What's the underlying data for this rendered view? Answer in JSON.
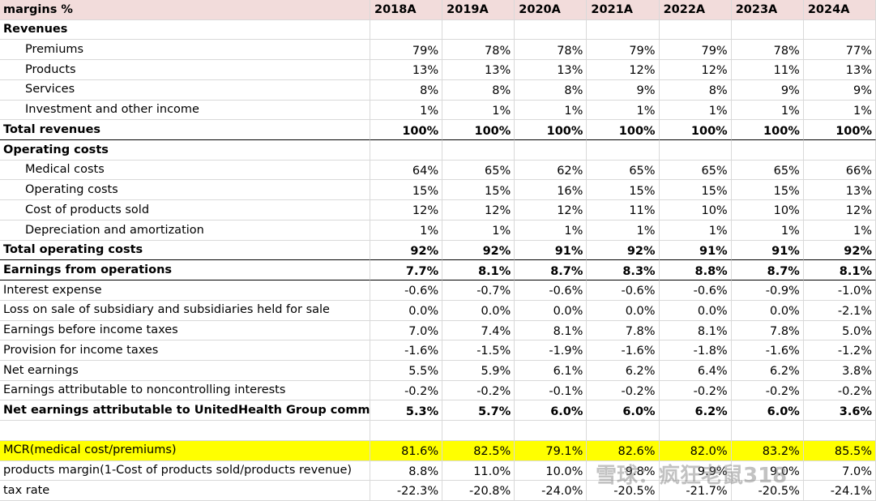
{
  "header": {
    "label": "margins %",
    "years": [
      "2018A",
      "2019A",
      "2020A",
      "2021A",
      "2022A",
      "2023A",
      "2024A"
    ]
  },
  "rows": [
    {
      "label": "Revenues",
      "bold": true
    },
    {
      "label": "Premiums",
      "indent": true,
      "values": [
        "79%",
        "78%",
        "78%",
        "79%",
        "79%",
        "78%",
        "77%"
      ]
    },
    {
      "label": "Products",
      "indent": true,
      "values": [
        "13%",
        "13%",
        "13%",
        "12%",
        "12%",
        "11%",
        "13%"
      ]
    },
    {
      "label": "Services",
      "indent": true,
      "values": [
        "8%",
        "8%",
        "8%",
        "9%",
        "8%",
        "9%",
        "9%"
      ]
    },
    {
      "label": "Investment and other income",
      "indent": true,
      "values": [
        "1%",
        "1%",
        "1%",
        "1%",
        "1%",
        "1%",
        "1%"
      ]
    },
    {
      "label": "Total revenues",
      "bold": true,
      "rule_below": true,
      "values": [
        "100%",
        "100%",
        "100%",
        "100%",
        "100%",
        "100%",
        "100%"
      ]
    },
    {
      "label": "Operating costs",
      "bold": true
    },
    {
      "label": "Medical costs",
      "indent": true,
      "values": [
        "64%",
        "65%",
        "62%",
        "65%",
        "65%",
        "65%",
        "66%"
      ]
    },
    {
      "label": "Operating costs",
      "indent": true,
      "values": [
        "15%",
        "15%",
        "16%",
        "15%",
        "15%",
        "15%",
        "13%"
      ]
    },
    {
      "label": "Cost of products sold",
      "indent": true,
      "values": [
        "12%",
        "12%",
        "12%",
        "11%",
        "10%",
        "10%",
        "12%"
      ]
    },
    {
      "label": "Depreciation and amortization",
      "indent": true,
      "values": [
        "1%",
        "1%",
        "1%",
        "1%",
        "1%",
        "1%",
        "1%"
      ]
    },
    {
      "label": "Total operating costs",
      "bold": true,
      "rule_below": true,
      "values": [
        "92%",
        "92%",
        "91%",
        "92%",
        "91%",
        "91%",
        "92%"
      ]
    },
    {
      "label": "Earnings from operations",
      "bold": true,
      "rule_below": true,
      "values": [
        "7.7%",
        "8.1%",
        "8.7%",
        "8.3%",
        "8.8%",
        "8.7%",
        "8.1%"
      ]
    },
    {
      "label": "Interest expense",
      "values": [
        "-0.6%",
        "-0.7%",
        "-0.6%",
        "-0.6%",
        "-0.6%",
        "-0.9%",
        "-1.0%"
      ]
    },
    {
      "label": "Loss on sale of subsidiary and subsidiaries held for sale",
      "values": [
        "0.0%",
        "0.0%",
        "0.0%",
        "0.0%",
        "0.0%",
        "0.0%",
        "-2.1%"
      ]
    },
    {
      "label": "Earnings before income taxes",
      "values": [
        "7.0%",
        "7.4%",
        "8.1%",
        "7.8%",
        "8.1%",
        "7.8%",
        "5.0%"
      ]
    },
    {
      "label": "Provision for income taxes",
      "values": [
        "-1.6%",
        "-1.5%",
        "-1.9%",
        "-1.6%",
        "-1.8%",
        "-1.6%",
        "-1.2%"
      ]
    },
    {
      "label": "Net earnings",
      "values": [
        "5.5%",
        "5.9%",
        "6.1%",
        "6.2%",
        "6.4%",
        "6.2%",
        "3.8%"
      ]
    },
    {
      "label": "Earnings attributable to noncontrolling interests",
      "values": [
        "-0.2%",
        "-0.2%",
        "-0.1%",
        "-0.2%",
        "-0.2%",
        "-0.2%",
        "-0.2%"
      ]
    },
    {
      "label": "Net earnings attributable to UnitedHealth Group common shareholders",
      "bold": true,
      "values": [
        "5.3%",
        "5.7%",
        "6.0%",
        "6.0%",
        "6.2%",
        "6.0%",
        "3.6%"
      ]
    }
  ],
  "ratios": [
    {
      "label": "MCR(medical cost/premiums)",
      "highlight": true,
      "values": [
        "81.6%",
        "82.5%",
        "79.1%",
        "82.6%",
        "82.0%",
        "83.2%",
        "85.5%"
      ]
    },
    {
      "label": "products margin(1-Cost of products sold/products revenue)",
      "values": [
        "8.8%",
        "11.0%",
        "10.0%",
        "9.8%",
        "9.9%",
        "9.0%",
        "7.0%"
      ]
    },
    {
      "label": "tax rate",
      "values": [
        "-22.3%",
        "-20.8%",
        "-24.0%",
        "-20.5%",
        "-21.7%",
        "-20.5%",
        "-24.1%"
      ]
    }
  ],
  "watermark": "雪球：疯狂老鼠318"
}
